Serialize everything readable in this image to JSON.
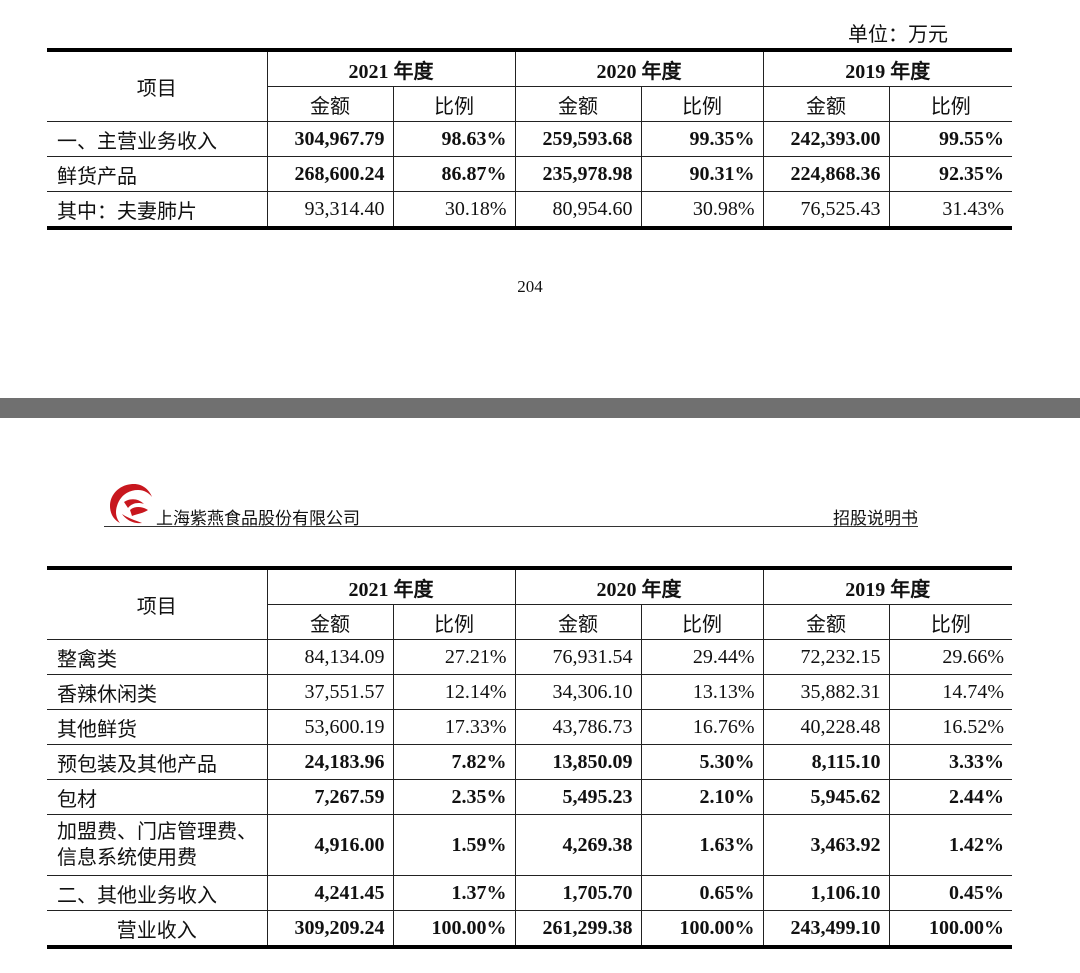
{
  "unit_label": "单位：万元",
  "page_number": "204",
  "header": {
    "company": "上海紫燕食品股份有限公司",
    "doc_type": "招股说明书"
  },
  "table_headers": {
    "item": "项目",
    "years": [
      "2021 年度",
      "2020 年度",
      "2019 年度"
    ],
    "amount": "金额",
    "ratio": "比例"
  },
  "table1": {
    "rows": [
      {
        "name": "一、主营业务收入",
        "bold": true,
        "values": [
          "304,967.79",
          "98.63%",
          "259,593.68",
          "99.35%",
          "242,393.00",
          "99.55%"
        ]
      },
      {
        "name": "鲜货产品",
        "bold": true,
        "values": [
          "268,600.24",
          "86.87%",
          "235,978.98",
          "90.31%",
          "224,868.36",
          "92.35%"
        ]
      },
      {
        "name": "其中：夫妻肺片",
        "bold": false,
        "values": [
          "93,314.40",
          "30.18%",
          "80,954.60",
          "30.98%",
          "76,525.43",
          "31.43%"
        ]
      }
    ]
  },
  "table2": {
    "rows": [
      {
        "name": "整禽类",
        "bold": false,
        "values": [
          "84,134.09",
          "27.21%",
          "76,931.54",
          "29.44%",
          "72,232.15",
          "29.66%"
        ]
      },
      {
        "name": "香辣休闲类",
        "bold": false,
        "values": [
          "37,551.57",
          "12.14%",
          "34,306.10",
          "13.13%",
          "35,882.31",
          "14.74%"
        ]
      },
      {
        "name": "其他鲜货",
        "bold": false,
        "values": [
          "53,600.19",
          "17.33%",
          "43,786.73",
          "16.76%",
          "40,228.48",
          "16.52%"
        ]
      },
      {
        "name": "预包装及其他产品",
        "bold": true,
        "values": [
          "24,183.96",
          "7.82%",
          "13,850.09",
          "5.30%",
          "8,115.10",
          "3.33%"
        ]
      },
      {
        "name": "包材",
        "bold": true,
        "values": [
          "7,267.59",
          "2.35%",
          "5,495.23",
          "2.10%",
          "5,945.62",
          "2.44%"
        ]
      },
      {
        "name_lines": [
          "加盟费、门店管理费、",
          "信息系统使用费"
        ],
        "bold": true,
        "values": [
          "4,916.00",
          "1.59%",
          "4,269.38",
          "1.63%",
          "3,463.92",
          "1.42%"
        ]
      },
      {
        "name": "二、其他业务收入",
        "bold": true,
        "values": [
          "4,241.45",
          "1.37%",
          "1,705.70",
          "0.65%",
          "1,106.10",
          "0.45%"
        ]
      },
      {
        "name": "营业收入",
        "bold": true,
        "centered": true,
        "values": [
          "309,209.24",
          "100.00%",
          "261,299.38",
          "100.00%",
          "243,499.10",
          "100.00%"
        ]
      }
    ]
  },
  "colors": {
    "logo_red": "#c8171e",
    "divider": "#707070"
  }
}
